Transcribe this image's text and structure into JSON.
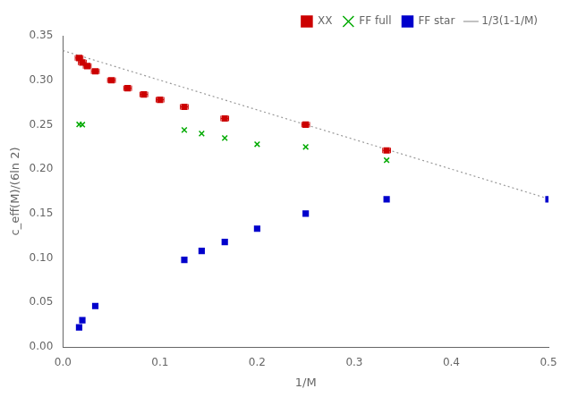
{
  "chart_data": {
    "type": "scatter",
    "xlabel": "1/M",
    "ylabel": "c_eff(M)/(6ln 2)",
    "xlim": [
      0,
      0.5
    ],
    "ylim": [
      0.0,
      0.35
    ],
    "xticks": [
      {
        "value": 0.0,
        "label": "0.0"
      },
      {
        "value": 0.1,
        "label": "0.1"
      },
      {
        "value": 0.2,
        "label": "0.2"
      },
      {
        "value": 0.3,
        "label": "0.3"
      },
      {
        "value": 0.4,
        "label": "0.4"
      },
      {
        "value": 0.5,
        "label": "0.5"
      }
    ],
    "yticks": [
      {
        "value": 0.0,
        "label": "0.00"
      },
      {
        "value": 0.05,
        "label": "0.05"
      },
      {
        "value": 0.1,
        "label": "0.10"
      },
      {
        "value": 0.15,
        "label": "0.15"
      },
      {
        "value": 0.2,
        "label": "0.20"
      },
      {
        "value": 0.25,
        "label": "0.25"
      },
      {
        "value": 0.3,
        "label": "0.30"
      },
      {
        "value": 0.35,
        "label": "0.35"
      }
    ],
    "grid": false,
    "legend": "upper right",
    "series": [
      {
        "name": "1/3(1-1/M)",
        "type": "line",
        "line_style": "dotted",
        "color": "#999999",
        "x": [
          0.0,
          0.5
        ],
        "values": [
          0.33333,
          0.16667
        ]
      },
      {
        "name": "XX",
        "type": "scatter",
        "marker": "square",
        "color": "#cc0000",
        "x": [
          0.016667,
          0.02,
          0.025,
          0.033333,
          0.05,
          0.066667,
          0.083333,
          0.1,
          0.125,
          0.166667,
          0.25,
          0.333333
        ],
        "values": [
          0.325,
          0.32,
          0.316,
          0.31,
          0.3,
          0.291,
          0.284,
          0.278,
          0.27,
          0.257,
          0.25,
          0.221
        ],
        "xerr": 0.004
      },
      {
        "name": "FF full",
        "type": "scatter",
        "marker": "x",
        "color": "#00aa00",
        "x": [
          0.016667,
          0.02,
          0.125,
          0.142857,
          0.166667,
          0.2,
          0.25,
          0.333333
        ],
        "values": [
          0.2502,
          0.25,
          0.244,
          0.24,
          0.235,
          0.228,
          0.225,
          0.21
        ]
      },
      {
        "name": "FF star",
        "type": "scatter",
        "marker": "square",
        "color": "#0000cc",
        "x": [
          0.016667,
          0.02,
          0.033333,
          0.125,
          0.142857,
          0.166667,
          0.2,
          0.25,
          0.333333,
          0.5
        ],
        "values": [
          0.022,
          0.03,
          0.046,
          0.098,
          0.108,
          0.118,
          0.133,
          0.15,
          0.166,
          0.166
        ]
      }
    ]
  }
}
